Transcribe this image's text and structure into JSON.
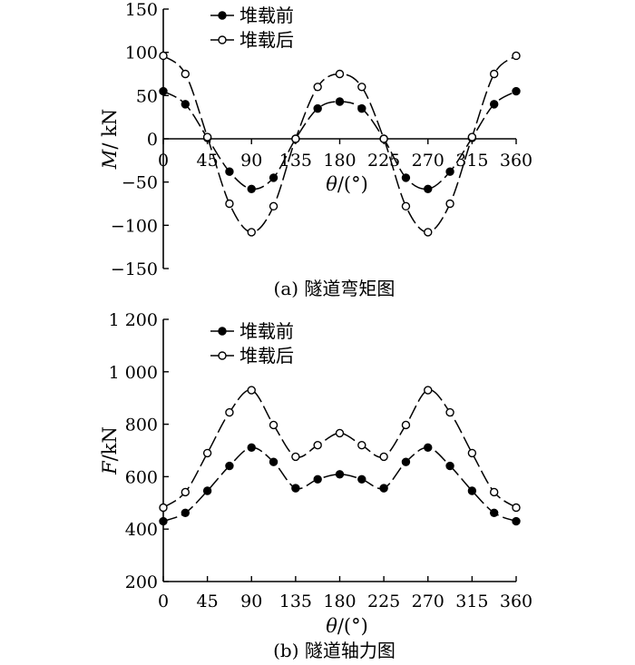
{
  "chart_data": [
    {
      "type": "line",
      "caption": "(a) 隧道弯矩图",
      "xlabel": "θ/(°)",
      "ylabel": "M/ kN",
      "xlim": [
        0,
        360
      ],
      "ylim": [
        -150,
        150
      ],
      "x_ticks": [
        "0",
        "45",
        "90",
        "135",
        "180",
        "225",
        "270",
        "315",
        "360"
      ],
      "y_ticks": [
        "150",
        "100",
        "50",
        "0",
        "−50",
        "−100",
        "−150"
      ],
      "x_tick_values": [
        0,
        45,
        90,
        135,
        180,
        225,
        270,
        315,
        360
      ],
      "y_tick_values": [
        150,
        100,
        50,
        0,
        -50,
        -100,
        -150
      ],
      "x_axis_at_zero": true,
      "grid": false,
      "legend_position": "top-left",
      "x": [
        0,
        22.5,
        45,
        67.5,
        90,
        112.5,
        135,
        157.5,
        180,
        202.5,
        225,
        247.5,
        270,
        292.5,
        315,
        337.5,
        360
      ],
      "series": [
        {
          "name": "堆载前",
          "marker": "filled-circle",
          "values": [
            55,
            40,
            1,
            -38,
            -58,
            -45,
            0,
            35,
            43,
            35,
            0,
            -45,
            -58,
            -38,
            1,
            40,
            55
          ]
        },
        {
          "name": "堆载后",
          "marker": "open-circle",
          "values": [
            96,
            75,
            2,
            -75,
            -108,
            -78,
            0,
            60,
            75,
            60,
            0,
            -78,
            -108,
            -75,
            2,
            75,
            96
          ]
        }
      ]
    },
    {
      "type": "line",
      "caption": "(b) 隧道轴力图",
      "xlabel": "θ/(°)",
      "ylabel": "F/kN",
      "xlim": [
        0,
        360
      ],
      "ylim": [
        200,
        1200
      ],
      "x_ticks": [
        "0",
        "45",
        "90",
        "135",
        "180",
        "225",
        "270",
        "315",
        "360"
      ],
      "y_ticks": [
        "1 200",
        "1 000",
        "800",
        "600",
        "400",
        "200"
      ],
      "x_tick_values": [
        0,
        45,
        90,
        135,
        180,
        225,
        270,
        315,
        360
      ],
      "y_tick_values": [
        1200,
        1000,
        800,
        600,
        400,
        200
      ],
      "x_axis_at_zero": false,
      "grid": false,
      "legend_position": "top-left",
      "x": [
        0,
        22.5,
        45,
        67.5,
        90,
        112.5,
        135,
        157.5,
        180,
        202.5,
        225,
        247.5,
        270,
        292.5,
        315,
        337.5,
        360
      ],
      "series": [
        {
          "name": "堆载前",
          "marker": "filled-circle",
          "values": [
            430,
            462,
            546,
            641,
            711,
            656,
            556,
            590,
            609,
            590,
            556,
            656,
            711,
            641,
            546,
            462,
            430
          ]
        },
        {
          "name": "堆载后",
          "marker": "open-circle",
          "values": [
            482,
            541,
            690,
            845,
            930,
            797,
            676,
            720,
            766,
            720,
            676,
            797,
            930,
            845,
            690,
            541,
            482
          ]
        }
      ]
    }
  ]
}
